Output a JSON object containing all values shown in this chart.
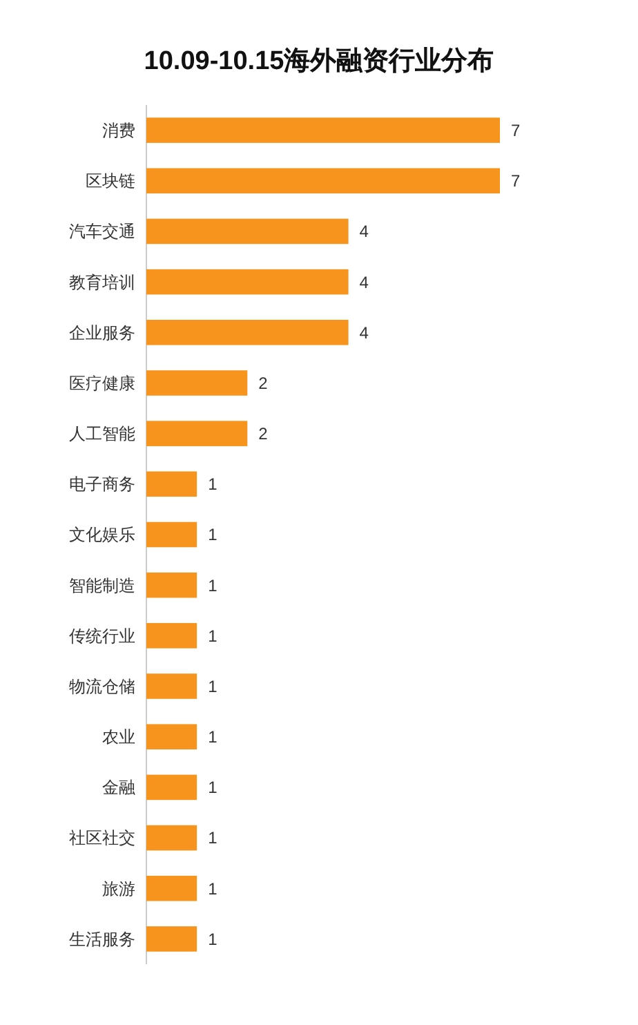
{
  "chart_data": {
    "type": "bar",
    "orientation": "horizontal",
    "title": "10.09-10.15海外融资行业分布",
    "categories": [
      "消费",
      "区块链",
      "汽车交通",
      "教育培训",
      "企业服务",
      "医疗健康",
      "人工智能",
      "电子商务",
      "文化娱乐",
      "智能制造",
      "传统行业",
      "物流仓储",
      "农业",
      "金融",
      "社区社交",
      "旅游",
      "生活服务"
    ],
    "values": [
      7,
      7,
      4,
      4,
      4,
      2,
      2,
      1,
      1,
      1,
      1,
      1,
      1,
      1,
      1,
      1,
      1
    ],
    "color": "#f7941d",
    "data_labels": true
  }
}
